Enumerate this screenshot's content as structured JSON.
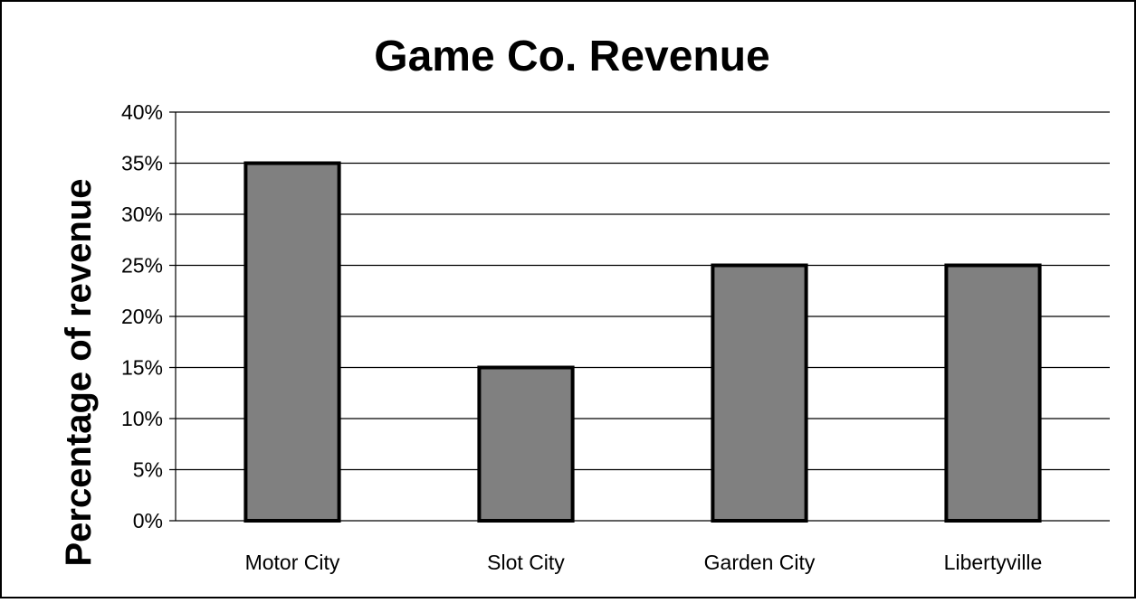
{
  "chart_data": {
    "type": "bar",
    "title": "Game Co. Revenue",
    "xlabel": "",
    "ylabel": "Percentage of revenue",
    "categories": [
      "Motor City",
      "Slot City",
      "Garden City",
      "Libertyville"
    ],
    "values": [
      35,
      15,
      25,
      25
    ],
    "ylim": [
      0,
      40
    ],
    "yticks": [
      0,
      5,
      10,
      15,
      20,
      25,
      30,
      35,
      40
    ],
    "ytick_labels": [
      "0%",
      "5%",
      "10%",
      "15%",
      "20%",
      "25%",
      "30%",
      "35%",
      "40%"
    ],
    "grid": true,
    "legend": "none",
    "colors": {
      "bar_fill": "#808080",
      "bar_stroke": "#000000",
      "grid": "#000000",
      "text": "#000000",
      "frame": "#000000"
    }
  }
}
